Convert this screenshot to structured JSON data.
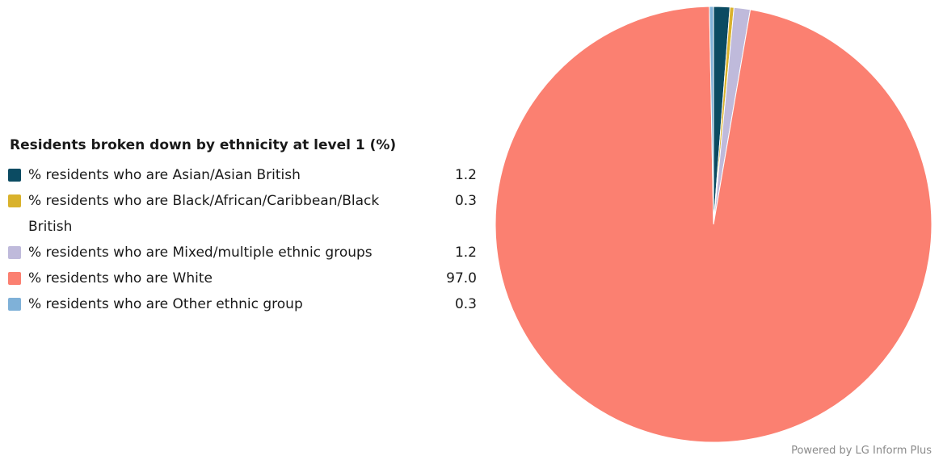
{
  "chart_data": {
    "type": "pie",
    "title": "Residents broken down by ethnicity at level 1 (%)",
    "start_angle_deg": 0,
    "slices": [
      {
        "label": "% residents who are Asian/Asian British",
        "value": 1.2,
        "display_value": "1.2",
        "color": "#0b4b62"
      },
      {
        "label": "% residents who are Black/African/Caribbean/Black British",
        "value": 0.3,
        "display_value": "0.3",
        "color": "#d9b22c"
      },
      {
        "label": "% residents who are Mixed/multiple ethnic groups",
        "value": 1.2,
        "display_value": "1.2",
        "color": "#bfbadb"
      },
      {
        "label": "% residents who are White",
        "value": 97.0,
        "display_value": "97.0",
        "color": "#fb8071"
      },
      {
        "label": "% residents who are Other ethnic group",
        "value": 0.3,
        "display_value": "0.3",
        "color": "#7fb1d8"
      }
    ],
    "legend_position": "left"
  },
  "credit": "Powered by LG Inform Plus"
}
